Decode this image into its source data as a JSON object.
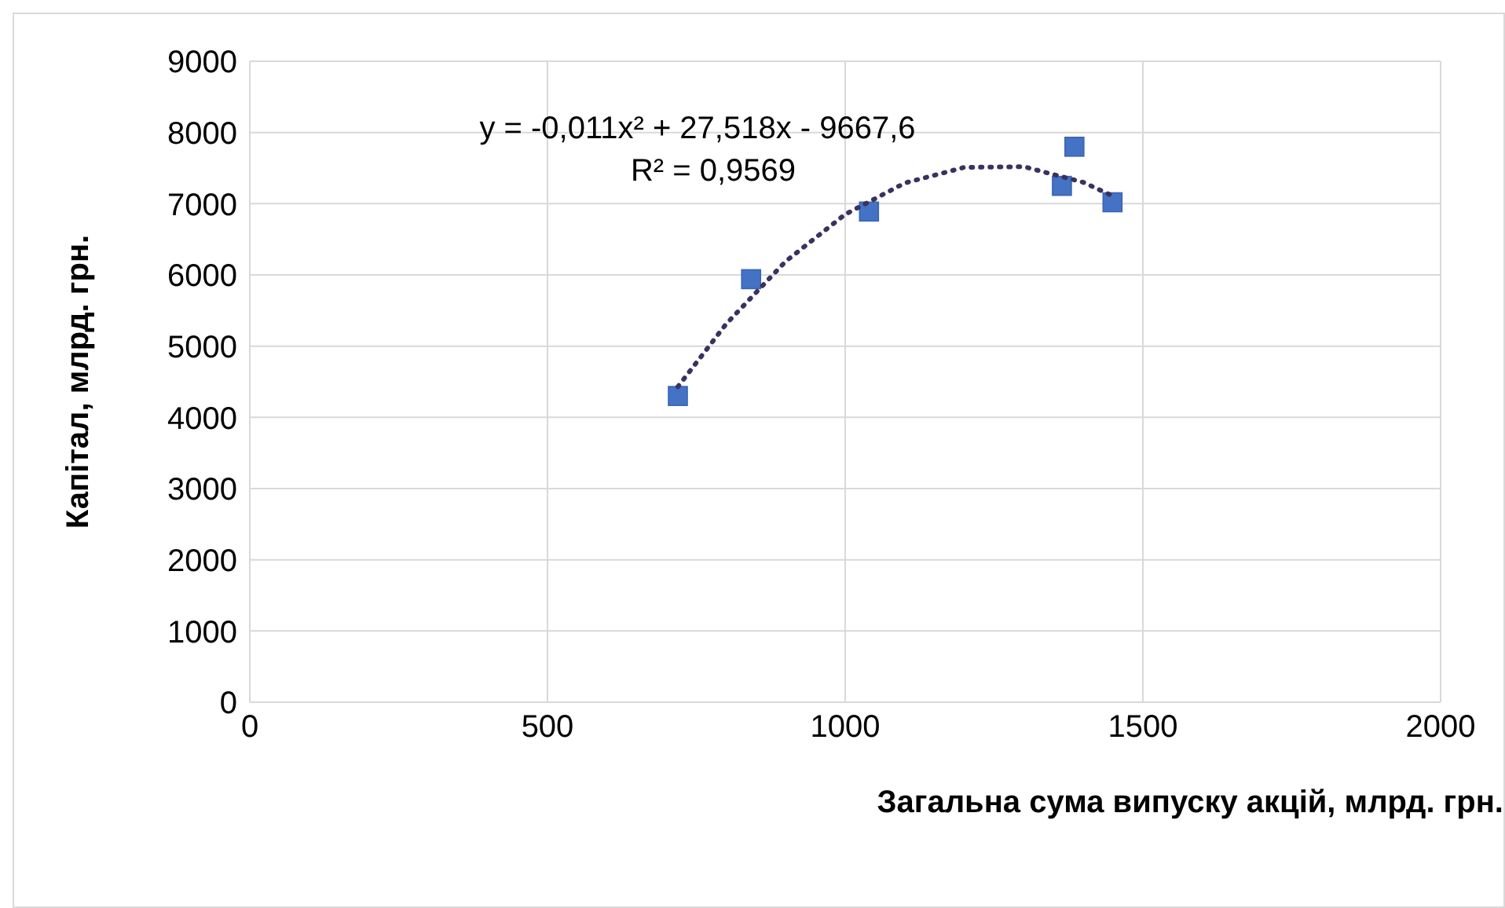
{
  "chart_data": {
    "type": "scatter",
    "xlabel": "Загальна сума випуску акцій, млрд. грн.",
    "ylabel": "Капітал, млрд. грн.",
    "xlim": [
      0,
      2000
    ],
    "xticks": [
      0,
      500,
      1000,
      1500,
      2000
    ],
    "ylim": [
      0,
      9000
    ],
    "yticks": [
      0,
      1000,
      2000,
      3000,
      4000,
      5000,
      6000,
      7000,
      8000,
      9000
    ],
    "grid": true,
    "legend": false,
    "marker": "square",
    "series": [
      {
        "type": "scatter",
        "color": "#4472c4",
        "x": [
          719,
          842,
          1040,
          1364,
          1385,
          1449
        ],
        "values": [
          4300,
          5940,
          6890,
          7250,
          7800,
          7020
        ]
      },
      {
        "type": "line",
        "color": "#3b3160",
        "line_style": "dotted",
        "marker": "none",
        "x": [
          719,
          800,
          900,
          1000,
          1100,
          1200,
          1300,
          1400,
          1449
        ],
        "values": [
          4430,
          5310,
          6190,
          6850,
          7290,
          7510,
          7520,
          7300,
          7110
        ]
      }
    ],
    "annotations": [
      "y = -0,011x² + 27,518x - 9667,6",
      "R² = 0,9569"
    ]
  }
}
